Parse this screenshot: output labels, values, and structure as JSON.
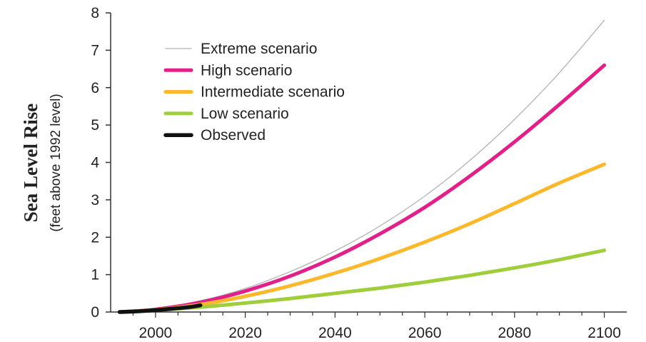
{
  "chart_data": {
    "type": "line",
    "title": "",
    "xlabel": "",
    "ylabel": "Sea Level Rise",
    "ylabel_sub": "(feet above 1992 level)",
    "xlim": [
      1990,
      2105
    ],
    "ylim": [
      0,
      8
    ],
    "x_ticks": [
      2000,
      2020,
      2040,
      2060,
      2080,
      2100
    ],
    "y_ticks": [
      0,
      1,
      2,
      3,
      4,
      5,
      6,
      7,
      8
    ],
    "grid": false,
    "legend_position": "top-left",
    "series": [
      {
        "name": "Extreme scenario",
        "color": "#b3b3b3",
        "x": [
          1992,
          2000,
          2010,
          2020,
          2030,
          2040,
          2050,
          2060,
          2070,
          2080,
          2090,
          2100
        ],
        "y": [
          0,
          0.08,
          0.3,
          0.63,
          1.08,
          1.63,
          2.3,
          3.1,
          4.05,
          5.15,
          6.4,
          7.8
        ]
      },
      {
        "name": "High scenario",
        "color": "#e0218a",
        "x": [
          1992,
          2000,
          2010,
          2020,
          2030,
          2040,
          2050,
          2060,
          2070,
          2080,
          2090,
          2100
        ],
        "y": [
          0,
          0.07,
          0.26,
          0.56,
          0.96,
          1.47,
          2.09,
          2.8,
          3.63,
          4.55,
          5.55,
          6.6
        ]
      },
      {
        "name": "Intermediate scenario",
        "color": "#fbb82c",
        "x": [
          1992,
          2000,
          2010,
          2020,
          2030,
          2040,
          2050,
          2060,
          2070,
          2080,
          2090,
          2100
        ],
        "y": [
          0,
          0.06,
          0.2,
          0.42,
          0.7,
          1.04,
          1.43,
          1.87,
          2.36,
          2.9,
          3.45,
          3.95
        ]
      },
      {
        "name": "Low scenario",
        "color": "#9fcd3c",
        "x": [
          1992,
          2000,
          2010,
          2020,
          2030,
          2040,
          2050,
          2060,
          2070,
          2080,
          2090,
          2100
        ],
        "y": [
          0,
          0.05,
          0.13,
          0.24,
          0.36,
          0.5,
          0.64,
          0.8,
          0.98,
          1.18,
          1.4,
          1.65
        ]
      },
      {
        "name": "Observed",
        "color": "#111111",
        "x": [
          1992,
          1996,
          2000,
          2004,
          2008,
          2010
        ],
        "y": [
          0,
          0.02,
          0.05,
          0.09,
          0.14,
          0.18
        ]
      }
    ]
  }
}
